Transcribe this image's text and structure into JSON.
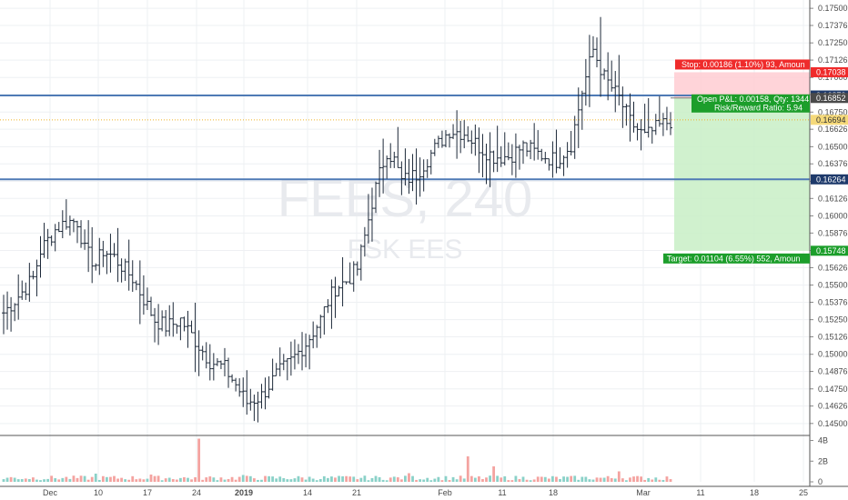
{
  "watermark": {
    "line1": "FEES, 240",
    "line2": "FSK EES"
  },
  "colors": {
    "bar": "#1d2939",
    "grid": "#eef0f3",
    "hline": "#4f7ab5",
    "stop_fill": "#ffcdd2",
    "target_fill": "#c8efc6",
    "stop_label": "#ef2b2b",
    "target_label": "#1c9e2b",
    "pnl_label": "#1c9e2b",
    "hline_label": "#1e3a6b",
    "price_label": "#f5d97a",
    "vol_up": "#8ad1c8",
    "vol_down": "#f4a3a0"
  },
  "position": {
    "stop_text": "Stop: 0.00186 (1.10%) 93, Amoun",
    "pnl_text": "Open P&L: 0.00158, Qty: 1344",
    "rr_text": "Risk/Reward Ratio: 5.94",
    "target_text": "Target: 0.01104 (6.55%) 552, Amoun"
  },
  "price_labels": [
    {
      "value": 0.17038,
      "text": "0.17038",
      "kind": "stop"
    },
    {
      "value": 0.1687,
      "text": "0.16870",
      "kind": "hline"
    },
    {
      "value": 0.16852,
      "text": "0.16852",
      "kind": "entry"
    },
    {
      "value": 0.16694,
      "text": "0.16694",
      "kind": "price"
    },
    {
      "value": 0.16264,
      "text": "0.16264",
      "kind": "hline"
    },
    {
      "value": 0.15748,
      "text": "0.15748",
      "kind": "target"
    }
  ],
  "chart_data": {
    "type": "bar",
    "symbol": "FEES",
    "interval": "240",
    "ylim": [
      0.1442,
      0.1756
    ],
    "y_ticks": [
      "0.17500",
      "0.17376",
      "0.17250",
      "0.17126",
      "0.17000",
      "0.16876",
      "0.16750",
      "0.16626",
      "0.16500",
      "0.16376",
      "0.16250",
      "0.16126",
      "0.16000",
      "0.15876",
      "0.15750",
      "0.15626",
      "0.15500",
      "0.15376",
      "0.15250",
      "0.15126",
      "0.15000",
      "0.14876",
      "0.14750",
      "0.14626",
      "0.14500"
    ],
    "x_ticks": [
      "Dec",
      "10",
      "17",
      "24",
      "2019",
      "14",
      "21",
      "Feb",
      "11",
      "18",
      "Mar",
      "11",
      "18",
      "25"
    ],
    "volume_ticks": [
      "4B",
      "2B",
      "0"
    ],
    "horizontal_lines": [
      0.1687,
      0.16264
    ],
    "current_price_line": 0.16694,
    "position": {
      "entry": 0.16852,
      "stop": 0.17038,
      "target": 0.15748
    },
    "price_checkpoints": [
      [
        0.153,
        0.1545,
        0.1555,
        0.1575,
        0.159,
        0.1596,
        0.1596,
        0.1575,
        0.1565,
        0.1575,
        0.157,
        0.1555,
        0.154,
        0.1525,
        0.152,
        0.1522,
        0.1525,
        0.151,
        0.1495,
        0.149,
        0.1478,
        0.1465,
        0.147,
        0.1485,
        0.1495,
        0.1508,
        0.1525,
        0.1538,
        0.1548,
        0.1553,
        0.1562,
        0.1585,
        0.161,
        0.163,
        0.1647,
        0.164,
        0.1625,
        0.163,
        0.1645,
        0.1662,
        0.166,
        0.165,
        0.1643,
        0.1643,
        0.165,
        0.1645,
        0.164,
        0.1652,
        0.169,
        0.172,
        0.17,
        0.1685,
        0.1668,
        0.1657,
        0.1665,
        0.167
      ]
    ],
    "price_range_index": [
      0,
      5,
      8,
      10,
      14,
      17,
      20,
      22,
      25,
      27,
      30,
      35,
      38,
      41,
      44,
      46,
      48,
      52,
      56,
      60,
      63,
      66,
      70,
      74,
      78,
      82,
      86,
      88,
      90,
      93,
      96,
      98,
      100,
      102,
      104,
      106,
      108,
      112,
      116,
      121,
      125,
      129,
      133,
      137,
      141,
      145,
      150,
      154,
      157,
      160,
      163,
      167,
      170,
      174,
      178,
      182
    ],
    "bar_count": 182,
    "volume_spikes": {
      "53": 0.95,
      "126": 0.56,
      "133": 0.34,
      "167": 0.23,
      "110": 0.19,
      "25": 0.18,
      "40": 0.16,
      "65": 0.15
    }
  }
}
